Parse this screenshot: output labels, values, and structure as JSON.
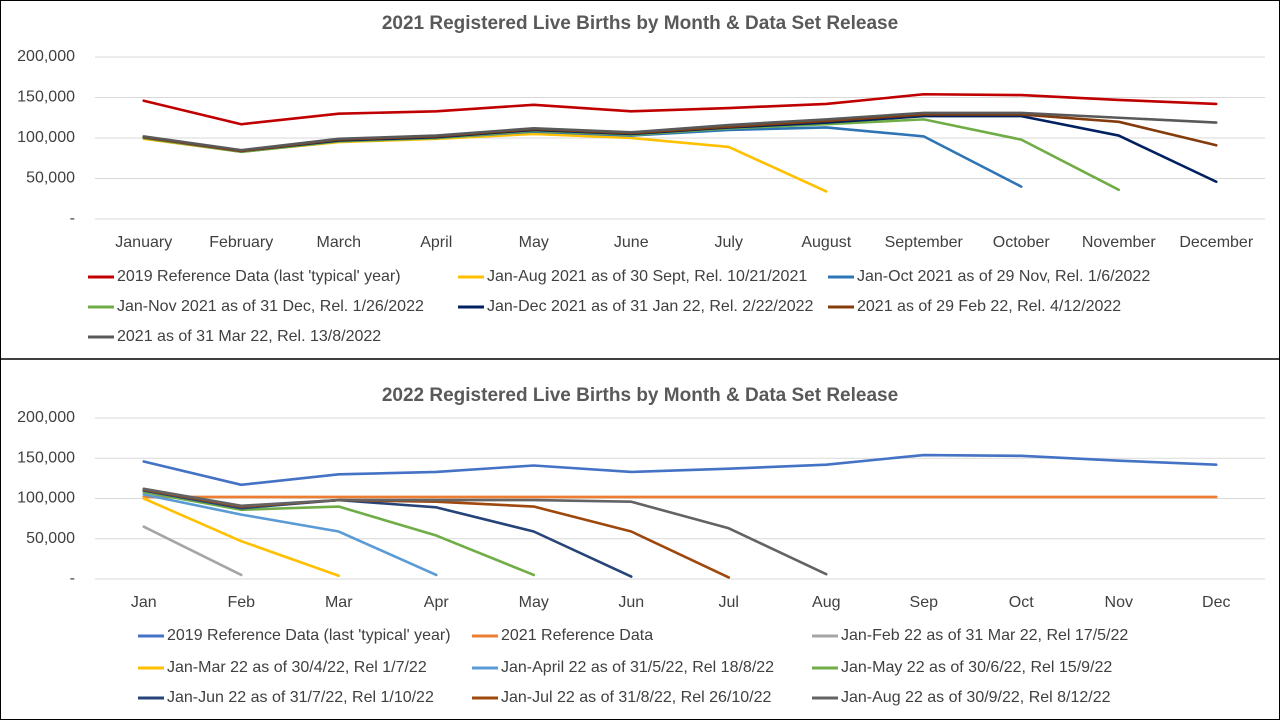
{
  "chart_data": [
    {
      "type": "line",
      "title": "2021 Registered Live Births by Month & Data Set Release",
      "categories": [
        "January",
        "February",
        "March",
        "April",
        "May",
        "June",
        "July",
        "August",
        "September",
        "October",
        "November",
        "December"
      ],
      "ylim": [
        0,
        200000
      ],
      "yticks": [
        {
          "value": 0,
          "label": "-"
        },
        {
          "value": 50000,
          "label": "50,000"
        },
        {
          "value": 100000,
          "label": "100,000"
        },
        {
          "value": 150000,
          "label": "150,000"
        },
        {
          "value": 200000,
          "label": "200,000"
        }
      ],
      "grid": true,
      "series": [
        {
          "name": "2019  Reference Data (last 'typical' year)",
          "color": "#c00000",
          "values": [
            146000,
            117000,
            130000,
            133000,
            141000,
            133000,
            137000,
            142000,
            154000,
            153000,
            147000,
            142000
          ]
        },
        {
          "name": "Jan-Aug 2021 as of 30 Sept, Rel. 10/21/2021",
          "color": "#ffc000",
          "values": [
            99000,
            83000,
            95000,
            99000,
            105000,
            100000,
            89000,
            34000,
            null,
            null,
            null,
            null
          ]
        },
        {
          "name": "Jan-Oct 2021 as of 29 Nov, Rel. 1/6/2022",
          "color": "#2e75b6",
          "values": [
            100000,
            83000,
            96000,
            100000,
            108000,
            103000,
            110000,
            113000,
            102000,
            40000,
            null,
            null
          ]
        },
        {
          "name": "Jan-Nov 2021 as of 31 Dec, Rel. 1/26/2022",
          "color": "#70ad47",
          "values": [
            100000,
            83000,
            96000,
            100000,
            109000,
            104000,
            112000,
            117000,
            123000,
            98000,
            36000,
            null
          ]
        },
        {
          "name": "Jan-Dec 2021 as of 31 Jan 22, Rel. 2/22/2022",
          "color": "#002060",
          "values": [
            101000,
            84000,
            97000,
            101000,
            110000,
            105000,
            113000,
            119000,
            127000,
            127000,
            103000,
            46000
          ]
        },
        {
          "name": "2021 as of 29 Feb 22, Rel. 4/12/2022",
          "color": "#843c0c",
          "values": [
            101000,
            84000,
            98000,
            102000,
            111000,
            106000,
            114000,
            121000,
            129000,
            129000,
            120000,
            91000
          ]
        },
        {
          "name": "2021 as of 31 Mar 22, Rel. 13/8/2022",
          "color": "#595959",
          "values": [
            102000,
            85000,
            99000,
            103000,
            112000,
            107000,
            116000,
            123000,
            131000,
            131000,
            125000,
            119000
          ]
        }
      ]
    },
    {
      "type": "line",
      "title": "2022 Registered Live Births by Month & Data Set Release",
      "categories": [
        "Jan",
        "Feb",
        "Mar",
        "Apr",
        "May",
        "Jun",
        "Jul",
        "Aug",
        "Sep",
        "Oct",
        "Nov",
        "Dec"
      ],
      "ylim": [
        0,
        200000
      ],
      "yticks": [
        {
          "value": 0,
          "label": "-"
        },
        {
          "value": 50000,
          "label": "50,000"
        },
        {
          "value": 100000,
          "label": "100,000"
        },
        {
          "value": 150000,
          "label": "150,000"
        },
        {
          "value": 200000,
          "label": "200,000"
        }
      ],
      "grid": true,
      "series": [
        {
          "name": "2019  Reference Data (last 'typical' year)",
          "color": "#4472c4",
          "values": [
            146000,
            117000,
            130000,
            133000,
            141000,
            133000,
            137000,
            142000,
            154000,
            153000,
            147000,
            142000
          ]
        },
        {
          "name": "2021 Reference Data",
          "color": "#ed7d31",
          "values": [
            102000,
            102000,
            102000,
            102000,
            102000,
            102000,
            102000,
            102000,
            102000,
            102000,
            102000,
            102000
          ]
        },
        {
          "name": "Jan-Feb 22 as of 31 Mar 22, Rel 17/5/22",
          "color": "#a5a5a5",
          "values": [
            65000,
            5000,
            null,
            null,
            null,
            null,
            null,
            null,
            null,
            null,
            null,
            null
          ]
        },
        {
          "name": "Jan-Mar 22 as of 30/4/22, Rel 1/7/22",
          "color": "#ffc000",
          "values": [
            100000,
            47000,
            4000,
            null,
            null,
            null,
            null,
            null,
            null,
            null,
            null,
            null
          ]
        },
        {
          "name": "Jan-April 22 as of 31/5/22, Rel 18/8/22",
          "color": "#5b9bd5",
          "values": [
            105000,
            80000,
            59000,
            5000,
            null,
            null,
            null,
            null,
            null,
            null,
            null,
            null
          ]
        },
        {
          "name": "Jan-May 22 as of 30/6/22, Rel 15/9/22",
          "color": "#70ad47",
          "values": [
            108000,
            86000,
            90000,
            54000,
            5000,
            null,
            null,
            null,
            null,
            null,
            null,
            null
          ]
        },
        {
          "name": "Jan-Jun 22 as of 31/7/22, Rel 1/10/22",
          "color": "#264478",
          "values": [
            110000,
            88000,
            98000,
            89000,
            59000,
            3000,
            null,
            null,
            null,
            null,
            null,
            null
          ]
        },
        {
          "name": "Jan-Jul 22 as of 31/8/22, Rel 26/10/22",
          "color": "#9e480e",
          "values": [
            111000,
            90000,
            98000,
            96000,
            90000,
            59000,
            2000,
            null,
            null,
            null,
            null,
            null
          ]
        },
        {
          "name": "Jan-Aug 22 as of 30/9/22, Rel 8/12/22",
          "color": "#636363",
          "values": [
            112000,
            91000,
            98000,
            98000,
            98000,
            96000,
            63000,
            6000,
            null,
            null,
            null,
            null
          ]
        }
      ]
    }
  ]
}
